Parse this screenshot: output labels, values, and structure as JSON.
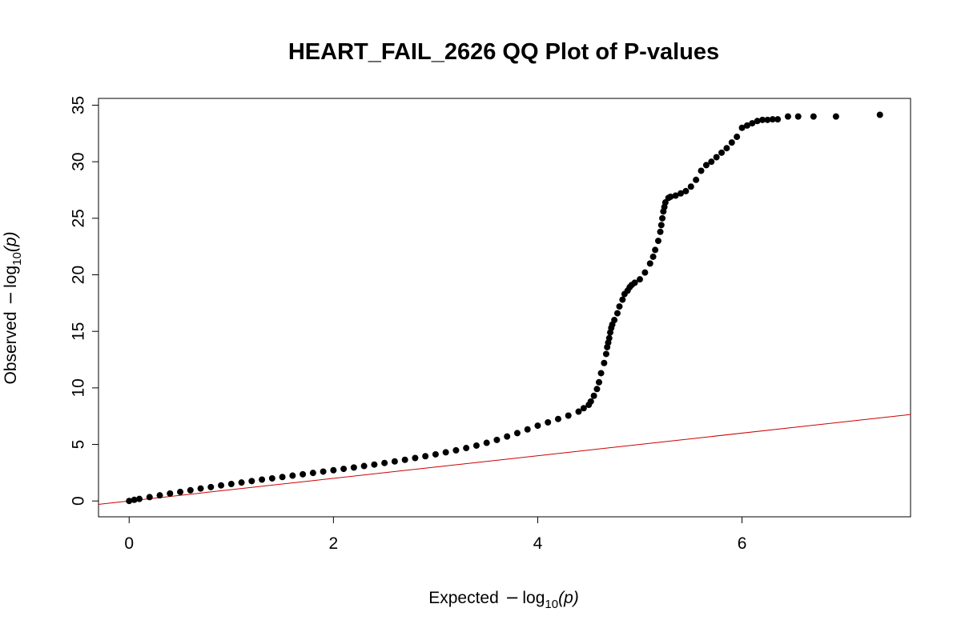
{
  "chart_data": {
    "type": "scatter",
    "title": "HEART_FAIL_2626 QQ Plot of P-values",
    "xlabel": {
      "prefix": "Expected",
      "minus": "−",
      "log": "log",
      "sub": "10",
      "arg": "(p)"
    },
    "ylabel": {
      "prefix": "Observed",
      "minus": "−",
      "log": "log",
      "sub": "10",
      "arg": "(p)"
    },
    "xlim": [
      -0.3,
      7.65
    ],
    "ylim": [
      -1.4,
      35.6
    ],
    "x_ticks": [
      0,
      2,
      4,
      6
    ],
    "y_ticks": [
      0,
      5,
      10,
      15,
      20,
      25,
      30,
      35
    ],
    "grid": false,
    "reference_line": {
      "slope": 1,
      "intercept": 0,
      "color": "#cc0000"
    },
    "point_color": "#000000",
    "series": [
      {
        "x": [
          0.0,
          0.05,
          0.1,
          0.2,
          0.3,
          0.4,
          0.5,
          0.6,
          0.7,
          0.8,
          0.9,
          1.0,
          1.1,
          1.2,
          1.3,
          1.4,
          1.5,
          1.6,
          1.7,
          1.8,
          1.9,
          2.0,
          2.1,
          2.2,
          2.3,
          2.4,
          2.5,
          2.6,
          2.7,
          2.8,
          2.9,
          3.0,
          3.1,
          3.2,
          3.3,
          3.4,
          3.5,
          3.6,
          3.7,
          3.8,
          3.9,
          4.0,
          4.1,
          4.2,
          4.3,
          4.4,
          4.45,
          4.5,
          4.52,
          4.55,
          4.58,
          4.6,
          4.62,
          4.65,
          4.67,
          4.68,
          4.69,
          4.7,
          4.71,
          4.72,
          4.73,
          4.75,
          4.78,
          4.8,
          4.83,
          4.85,
          4.88,
          4.9,
          4.92,
          4.95,
          5.0,
          5.05,
          5.1,
          5.13,
          5.15,
          5.18,
          5.2,
          5.21,
          5.22,
          5.23,
          5.24,
          5.25,
          5.28,
          5.3,
          5.35,
          5.4,
          5.45,
          5.5,
          5.55,
          5.6,
          5.65,
          5.7,
          5.75,
          5.8,
          5.85,
          5.9,
          5.95,
          6.0,
          6.05,
          6.1,
          6.15,
          6.2,
          6.25,
          6.3,
          6.35,
          6.45,
          6.55,
          6.7,
          6.92,
          7.35
        ],
        "y": [
          0.0,
          0.1,
          0.18,
          0.34,
          0.5,
          0.66,
          0.8,
          0.95,
          1.1,
          1.23,
          1.38,
          1.5,
          1.63,
          1.76,
          1.89,
          2.0,
          2.12,
          2.24,
          2.36,
          2.48,
          2.6,
          2.72,
          2.84,
          2.96,
          3.09,
          3.22,
          3.36,
          3.5,
          3.64,
          3.8,
          3.96,
          4.12,
          4.3,
          4.48,
          4.68,
          4.9,
          5.14,
          5.4,
          5.7,
          6.0,
          6.33,
          6.66,
          6.95,
          7.25,
          7.55,
          7.9,
          8.2,
          8.5,
          8.8,
          9.3,
          9.9,
          10.5,
          11.3,
          12.2,
          13.0,
          13.6,
          14.0,
          14.4,
          14.9,
          15.3,
          15.6,
          16.0,
          16.6,
          17.2,
          17.8,
          18.3,
          18.6,
          18.9,
          19.1,
          19.3,
          19.6,
          20.2,
          21.0,
          21.6,
          22.2,
          23.0,
          23.8,
          24.4,
          25.0,
          25.6,
          26.0,
          26.4,
          26.8,
          26.9,
          27.0,
          27.2,
          27.4,
          27.8,
          28.4,
          29.2,
          29.7,
          30.0,
          30.4,
          30.8,
          31.2,
          31.7,
          32.2,
          33.0,
          33.2,
          33.4,
          33.6,
          33.7,
          33.7,
          33.75,
          33.75,
          34.0,
          34.0,
          34.0,
          34.0,
          34.15
        ]
      }
    ]
  }
}
